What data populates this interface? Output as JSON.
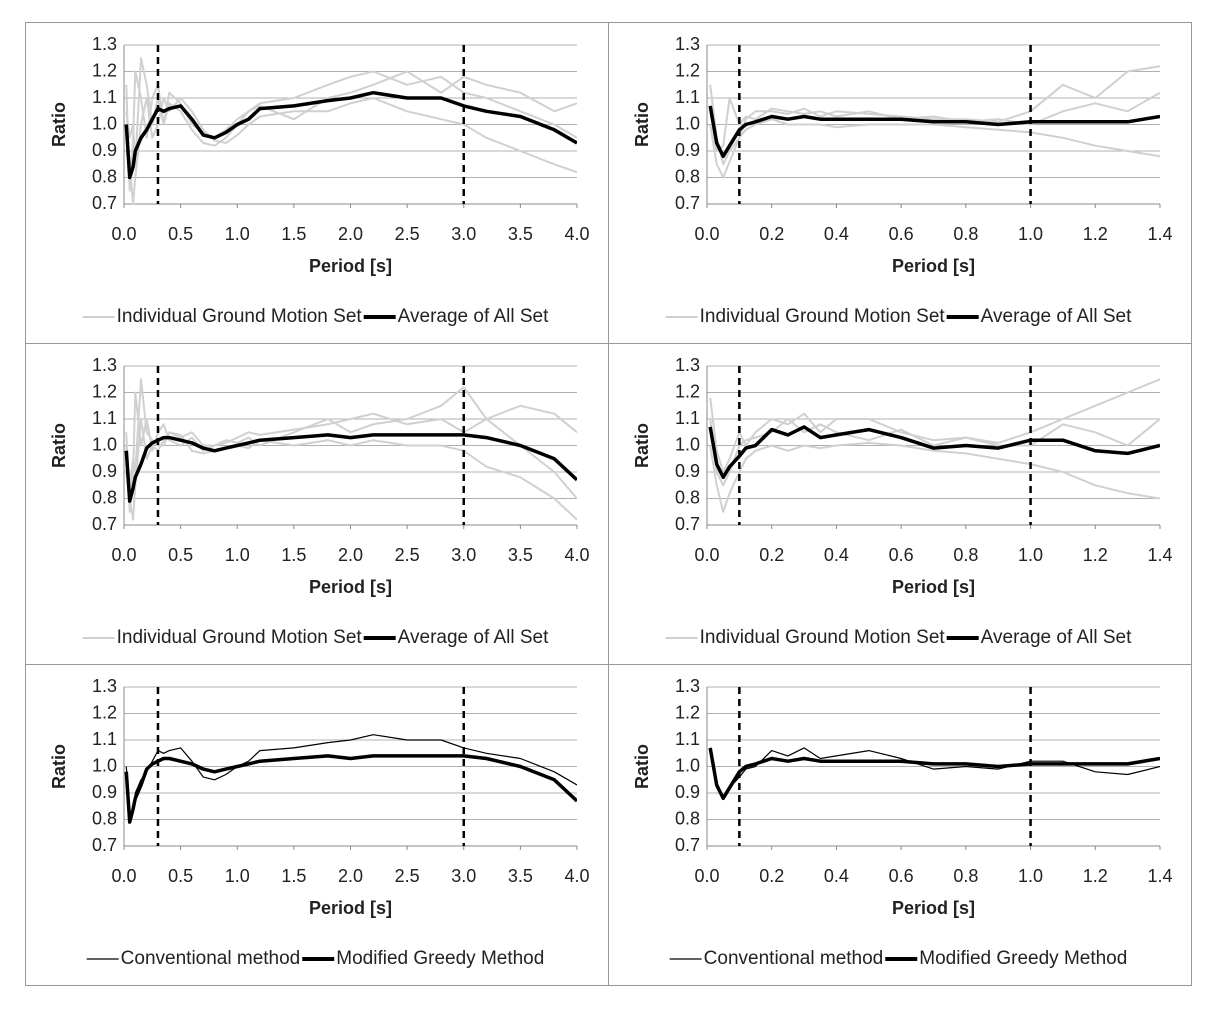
{
  "chart_data": [
    {
      "type": "line",
      "x_label": "Period [s]",
      "y_label": "Ratio",
      "grid": true,
      "xlim": [
        0,
        4
      ],
      "ylim": [
        0.7,
        1.3
      ],
      "xticks": [
        {
          "value": 0,
          "label": "0.0"
        },
        0.5,
        {
          "value": 1,
          "label": "1.0"
        },
        1.5,
        {
          "value": 2,
          "label": "2.0"
        },
        2.5,
        {
          "value": 3,
          "label": "3.0"
        },
        3.5,
        {
          "value": 4,
          "label": "4.0"
        }
      ],
      "yticks": [
        0.7,
        0.8,
        0.9,
        {
          "value": 1,
          "label": "1.0"
        },
        1.1,
        1.2,
        1.3
      ],
      "vlines": [
        0.3,
        3.0
      ],
      "x": [
        0.02,
        0.05,
        0.08,
        0.1,
        0.15,
        0.2,
        0.25,
        0.3,
        0.35,
        0.4,
        0.5,
        0.6,
        0.7,
        0.8,
        0.9,
        1.0,
        1.1,
        1.2,
        1.5,
        1.8,
        2.0,
        2.2,
        2.5,
        2.8,
        3.0,
        3.2,
        3.5,
        3.8,
        4.0
      ],
      "series": [
        {
          "name": "Individual Ground Motion Set",
          "color": "#d0d0d0",
          "line": "thin",
          "values": [
            [
              1.15,
              0.75,
              0.95,
              1.2,
              1.1,
              0.95,
              1.1,
              1.15,
              1.0,
              1.08,
              1.05,
              0.98,
              0.93,
              0.92,
              0.95,
              1.0,
              1.05,
              1.08,
              1.1,
              1.15,
              1.18,
              1.2,
              1.15,
              1.18,
              1.12,
              1.1,
              1.05,
              1.0,
              0.95
            ],
            [
              0.9,
              0.85,
              0.7,
              0.8,
              1.0,
              1.1,
              0.95,
              1.0,
              1.1,
              1.05,
              1.1,
              1.05,
              0.98,
              0.94,
              0.93,
              0.96,
              1.0,
              1.03,
              1.05,
              1.05,
              1.08,
              1.1,
              1.05,
              1.02,
              1.0,
              0.95,
              0.9,
              0.85,
              0.82
            ],
            [
              1.05,
              0.95,
              1.0,
              0.85,
              1.25,
              1.15,
              1.0,
              1.1,
              1.0,
              1.12,
              1.08,
              1.0,
              0.97,
              0.95,
              0.98,
              1.02,
              1.05,
              1.07,
              1.02,
              1.1,
              1.12,
              1.15,
              1.2,
              1.12,
              1.18,
              1.15,
              1.12,
              1.05,
              1.08
            ]
          ]
        },
        {
          "name": "Average of All Set",
          "color": "#000000",
          "line": "thick",
          "values": [
            1.0,
            0.8,
            0.84,
            0.9,
            0.95,
            0.98,
            1.02,
            1.06,
            1.05,
            1.06,
            1.07,
            1.02,
            0.96,
            0.95,
            0.97,
            1.0,
            1.02,
            1.06,
            1.07,
            1.09,
            1.1,
            1.12,
            1.1,
            1.1,
            1.07,
            1.05,
            1.03,
            0.98,
            0.93
          ]
        }
      ]
    },
    {
      "type": "line",
      "x_label": "Period [s]",
      "y_label": "Ratio",
      "grid": true,
      "xlim": [
        0,
        1.4
      ],
      "ylim": [
        0.7,
        1.3
      ],
      "xticks": [
        {
          "value": 0,
          "label": "0.0"
        },
        0.2,
        0.4,
        0.6,
        0.8,
        {
          "value": 1,
          "label": "1.0"
        },
        1.2,
        1.4
      ],
      "yticks": [
        0.7,
        0.8,
        0.9,
        {
          "value": 1,
          "label": "1.0"
        },
        1.1,
        1.2,
        1.3
      ],
      "vlines": [
        0.1,
        1.0
      ],
      "x": [
        0.01,
        0.03,
        0.05,
        0.07,
        0.1,
        0.12,
        0.15,
        0.2,
        0.25,
        0.3,
        0.35,
        0.4,
        0.5,
        0.6,
        0.7,
        0.8,
        0.9,
        1.0,
        1.1,
        1.2,
        1.3,
        1.4
      ],
      "series": [
        {
          "name": "Individual Ground Motion Set",
          "color": "#d0d0d0",
          "line": "thin",
          "values": [
            [
              1.15,
              0.95,
              0.85,
              0.9,
              0.95,
              1.02,
              1.05,
              1.05,
              1.04,
              1.06,
              1.03,
              1.05,
              1.04,
              1.03,
              1.02,
              1.02,
              1.01,
              1.05,
              1.15,
              1.1,
              1.2,
              1.22
            ],
            [
              1.0,
              0.85,
              0.8,
              0.86,
              0.95,
              0.98,
              1.0,
              1.02,
              1.0,
              1.0,
              1.0,
              0.99,
              1.0,
              1.0,
              1.0,
              0.99,
              0.98,
              0.97,
              0.95,
              0.92,
              0.9,
              0.88
            ],
            [
              1.05,
              0.9,
              0.92,
              1.1,
              1.0,
              1.03,
              1.02,
              1.06,
              1.05,
              1.04,
              1.05,
              1.03,
              1.05,
              1.02,
              1.03,
              1.01,
              1.02,
              1.0,
              1.05,
              1.08,
              1.05,
              1.12
            ]
          ]
        },
        {
          "name": "Average of All Set",
          "color": "#000000",
          "line": "thick",
          "values": [
            1.07,
            0.93,
            0.88,
            0.92,
            0.98,
            1.0,
            1.01,
            1.03,
            1.02,
            1.03,
            1.02,
            1.02,
            1.02,
            1.02,
            1.01,
            1.01,
            1.0,
            1.01,
            1.01,
            1.01,
            1.01,
            1.03
          ]
        }
      ]
    },
    {
      "type": "line",
      "x_label": "Period [s]",
      "y_label": "Ratio",
      "grid": true,
      "xlim": [
        0,
        4
      ],
      "ylim": [
        0.7,
        1.3
      ],
      "xticks": [
        {
          "value": 0,
          "label": "0.0"
        },
        0.5,
        {
          "value": 1,
          "label": "1.0"
        },
        1.5,
        {
          "value": 2,
          "label": "2.0"
        },
        2.5,
        {
          "value": 3,
          "label": "3.0"
        },
        3.5,
        {
          "value": 4,
          "label": "4.0"
        }
      ],
      "yticks": [
        0.7,
        0.8,
        0.9,
        {
          "value": 1,
          "label": "1.0"
        },
        1.1,
        1.2,
        1.3
      ],
      "vlines": [
        0.3,
        3.0
      ],
      "x": [
        0.02,
        0.05,
        0.08,
        0.1,
        0.15,
        0.2,
        0.25,
        0.3,
        0.35,
        0.4,
        0.5,
        0.6,
        0.7,
        0.8,
        0.9,
        1.0,
        1.1,
        1.2,
        1.5,
        1.8,
        2.0,
        2.2,
        2.5,
        2.8,
        3.0,
        3.2,
        3.5,
        3.8,
        4.0
      ],
      "series": [
        {
          "name": "Individual Ground Motion Set",
          "color": "#d0d0d0",
          "line": "thin",
          "values": [
            [
              1.05,
              0.75,
              0.9,
              1.2,
              1.0,
              1.1,
              0.98,
              1.05,
              1.08,
              1.02,
              1.0,
              1.03,
              0.98,
              1.0,
              1.02,
              1.01,
              1.03,
              1.0,
              1.05,
              1.1,
              1.05,
              1.08,
              1.1,
              1.15,
              1.22,
              1.1,
              1.0,
              0.9,
              0.8
            ],
            [
              0.9,
              0.8,
              0.72,
              0.85,
              1.1,
              0.95,
              1.0,
              0.98,
              1.02,
              1.05,
              1.04,
              0.98,
              0.97,
              0.98,
              0.99,
              1.0,
              0.99,
              1.02,
              1.0,
              1.02,
              1.0,
              1.02,
              1.0,
              1.0,
              0.98,
              0.92,
              0.88,
              0.8,
              0.72
            ],
            [
              1.0,
              0.85,
              0.95,
              0.9,
              1.25,
              1.05,
              1.02,
              1.0,
              1.0,
              1.05,
              1.03,
              1.05,
              1.0,
              1.0,
              1.01,
              1.03,
              1.05,
              1.04,
              1.06,
              1.08,
              1.1,
              1.12,
              1.08,
              1.1,
              1.05,
              1.1,
              1.15,
              1.12,
              1.05
            ]
          ]
        },
        {
          "name": "Average of All Set",
          "color": "#000000",
          "line": "thick",
          "values": [
            0.98,
            0.79,
            0.84,
            0.88,
            0.93,
            0.99,
            1.01,
            1.02,
            1.03,
            1.03,
            1.02,
            1.01,
            0.99,
            0.98,
            0.99,
            1.0,
            1.01,
            1.02,
            1.03,
            1.04,
            1.03,
            1.04,
            1.04,
            1.04,
            1.04,
            1.03,
            1.0,
            0.95,
            0.87
          ]
        }
      ]
    },
    {
      "type": "line",
      "x_label": "Period [s]",
      "y_label": "Ratio",
      "grid": true,
      "xlim": [
        0,
        1.4
      ],
      "ylim": [
        0.7,
        1.3
      ],
      "xticks": [
        {
          "value": 0,
          "label": "0.0"
        },
        0.2,
        0.4,
        0.6,
        0.8,
        {
          "value": 1,
          "label": "1.0"
        },
        1.2,
        1.4
      ],
      "yticks": [
        0.7,
        0.8,
        0.9,
        {
          "value": 1,
          "label": "1.0"
        },
        1.1,
        1.2,
        1.3
      ],
      "vlines": [
        0.1,
        1.0
      ],
      "x": [
        0.01,
        0.03,
        0.05,
        0.07,
        0.1,
        0.12,
        0.15,
        0.2,
        0.25,
        0.3,
        0.35,
        0.4,
        0.5,
        0.6,
        0.7,
        0.8,
        0.9,
        1.0,
        1.1,
        1.2,
        1.3,
        1.4
      ],
      "series": [
        {
          "name": "Individual Ground Motion Set",
          "color": "#d0d0d0",
          "line": "thin",
          "values": [
            [
              1.18,
              0.98,
              0.9,
              0.95,
              1.05,
              1.0,
              1.05,
              1.1,
              1.08,
              1.12,
              1.05,
              1.1,
              1.1,
              1.05,
              1.02,
              1.03,
              1.01,
              1.05,
              1.1,
              1.15,
              1.2,
              1.25
            ],
            [
              1.0,
              0.85,
              0.75,
              0.82,
              0.9,
              0.95,
              0.98,
              1.0,
              0.98,
              1.0,
              0.99,
              1.0,
              1.01,
              1.0,
              0.98,
              0.97,
              0.95,
              0.93,
              0.9,
              0.85,
              0.82,
              0.8
            ],
            [
              1.1,
              0.9,
              0.85,
              0.9,
              1.0,
              1.02,
              1.03,
              1.05,
              1.1,
              1.05,
              1.08,
              1.05,
              1.02,
              1.06,
              1.0,
              1.03,
              1.0,
              1.0,
              1.08,
              1.05,
              1.0,
              1.1
            ]
          ]
        },
        {
          "name": "Average of All Set",
          "color": "#000000",
          "line": "thick",
          "values": [
            1.07,
            0.93,
            0.88,
            0.92,
            0.96,
            0.99,
            1.0,
            1.06,
            1.04,
            1.07,
            1.03,
            1.04,
            1.06,
            1.03,
            0.99,
            1.0,
            0.99,
            1.02,
            1.02,
            0.98,
            0.97,
            1.0
          ]
        }
      ]
    },
    {
      "type": "line",
      "x_label": "Period [s]",
      "y_label": "Ratio",
      "grid": true,
      "xlim": [
        0,
        4
      ],
      "ylim": [
        0.7,
        1.3
      ],
      "xticks": [
        {
          "value": 0,
          "label": "0.0"
        },
        0.5,
        {
          "value": 1,
          "label": "1.0"
        },
        1.5,
        {
          "value": 2,
          "label": "2.0"
        },
        2.5,
        {
          "value": 3,
          "label": "3.0"
        },
        3.5,
        {
          "value": 4,
          "label": "4.0"
        }
      ],
      "yticks": [
        0.7,
        0.8,
        0.9,
        {
          "value": 1,
          "label": "1.0"
        },
        1.1,
        1.2,
        1.3
      ],
      "vlines": [
        0.3,
        3.0
      ],
      "x": [
        0.02,
        0.05,
        0.08,
        0.1,
        0.15,
        0.2,
        0.25,
        0.3,
        0.35,
        0.4,
        0.5,
        0.6,
        0.7,
        0.8,
        0.9,
        1.0,
        1.1,
        1.2,
        1.5,
        1.8,
        2.0,
        2.2,
        2.5,
        2.8,
        3.0,
        3.2,
        3.5,
        3.8,
        4.0
      ],
      "series": [
        {
          "name": "Conventional method",
          "color": "#000000",
          "line": "thin",
          "values": [
            1.0,
            0.8,
            0.84,
            0.9,
            0.95,
            0.98,
            1.02,
            1.06,
            1.05,
            1.06,
            1.07,
            1.02,
            0.96,
            0.95,
            0.97,
            1.0,
            1.02,
            1.06,
            1.07,
            1.09,
            1.1,
            1.12,
            1.1,
            1.1,
            1.07,
            1.05,
            1.03,
            0.98,
            0.93
          ]
        },
        {
          "name": "Modified Greedy Method",
          "color": "#000000",
          "line": "thick",
          "values": [
            0.98,
            0.79,
            0.84,
            0.88,
            0.93,
            0.99,
            1.01,
            1.02,
            1.03,
            1.03,
            1.02,
            1.01,
            0.99,
            0.98,
            0.99,
            1.0,
            1.01,
            1.02,
            1.03,
            1.04,
            1.03,
            1.04,
            1.04,
            1.04,
            1.04,
            1.03,
            1.0,
            0.95,
            0.87
          ]
        }
      ]
    },
    {
      "type": "line",
      "x_label": "Period [s]",
      "y_label": "Ratio",
      "grid": true,
      "xlim": [
        0,
        1.4
      ],
      "ylim": [
        0.7,
        1.3
      ],
      "xticks": [
        {
          "value": 0,
          "label": "0.0"
        },
        0.2,
        0.4,
        0.6,
        0.8,
        {
          "value": 1,
          "label": "1.0"
        },
        1.2,
        1.4
      ],
      "yticks": [
        0.7,
        0.8,
        0.9,
        {
          "value": 1,
          "label": "1.0"
        },
        1.1,
        1.2,
        1.3
      ],
      "vlines": [
        0.1,
        1.0
      ],
      "x": [
        0.01,
        0.03,
        0.05,
        0.07,
        0.1,
        0.12,
        0.15,
        0.2,
        0.25,
        0.3,
        0.35,
        0.4,
        0.5,
        0.6,
        0.7,
        0.8,
        0.9,
        1.0,
        1.1,
        1.2,
        1.3,
        1.4
      ],
      "series": [
        {
          "name": "Conventional method",
          "color": "#000000",
          "line": "thin",
          "values": [
            1.07,
            0.93,
            0.88,
            0.92,
            0.96,
            0.99,
            1.0,
            1.06,
            1.04,
            1.07,
            1.03,
            1.04,
            1.06,
            1.03,
            0.99,
            1.0,
            0.99,
            1.02,
            1.02,
            0.98,
            0.97,
            1.0
          ]
        },
        {
          "name": "Modified Greedy Method",
          "color": "#000000",
          "line": "thick",
          "values": [
            1.07,
            0.93,
            0.88,
            0.92,
            0.98,
            1.0,
            1.01,
            1.03,
            1.02,
            1.03,
            1.02,
            1.02,
            1.02,
            1.02,
            1.01,
            1.01,
            1.0,
            1.01,
            1.01,
            1.01,
            1.01,
            1.03
          ]
        }
      ]
    }
  ]
}
